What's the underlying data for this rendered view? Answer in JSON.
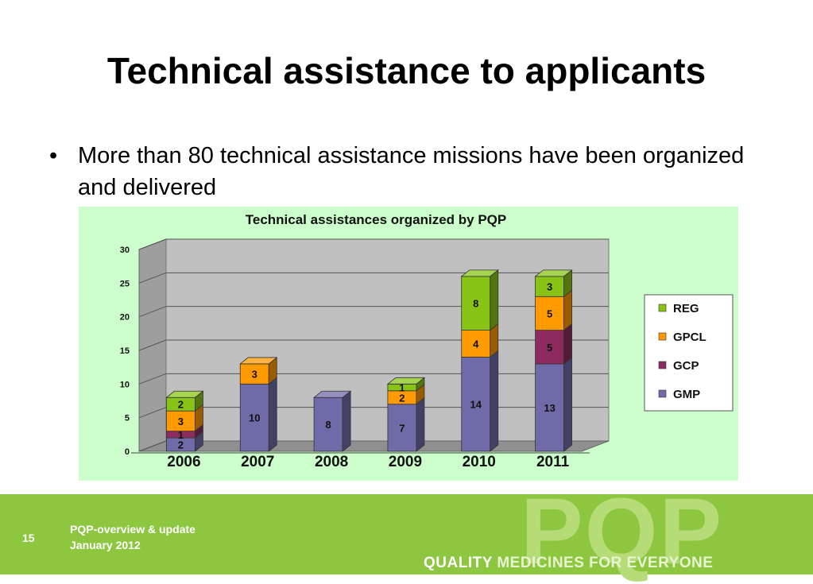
{
  "slide": {
    "title": "Technical assistance to applicants",
    "bullet_marker": "•",
    "bullet_text": "More than 80 technical assistance missions have been organized and delivered"
  },
  "footer": {
    "page_number": "15",
    "line1": "PQP-overview & update",
    "line2": "January 2012",
    "logo_text": "PQP",
    "tagline_part1": "QUALITY ",
    "tagline_part2": "MEDICINES FOR EVERYONE",
    "bar_color": "#8dc63f"
  },
  "chart_data": {
    "type": "bar",
    "stacked": true,
    "three_d": true,
    "title": "Technical assistances organized by PQP",
    "categories": [
      "2006",
      "2007",
      "2008",
      "2009",
      "2010",
      "2011"
    ],
    "series": [
      {
        "name": "GMP",
        "color": "#6f6ba8",
        "values": [
          2,
          10,
          8,
          7,
          14,
          13
        ]
      },
      {
        "name": "GCP",
        "color": "#8e2b5e",
        "values": [
          1,
          0,
          0,
          0,
          0,
          5
        ]
      },
      {
        "name": "GPCL",
        "color": "#ff9a00",
        "values": [
          3,
          3,
          0,
          2,
          4,
          5
        ]
      },
      {
        "name": "REG",
        "color": "#88c416",
        "values": [
          2,
          0,
          0,
          1,
          8,
          3
        ]
      }
    ],
    "ylim": [
      0,
      30
    ],
    "yticks": [
      0,
      5,
      10,
      15,
      20,
      25,
      30
    ],
    "grid": true,
    "legend": "right",
    "background": "#ccffcc",
    "plot_wall": "#c0c0c0"
  }
}
